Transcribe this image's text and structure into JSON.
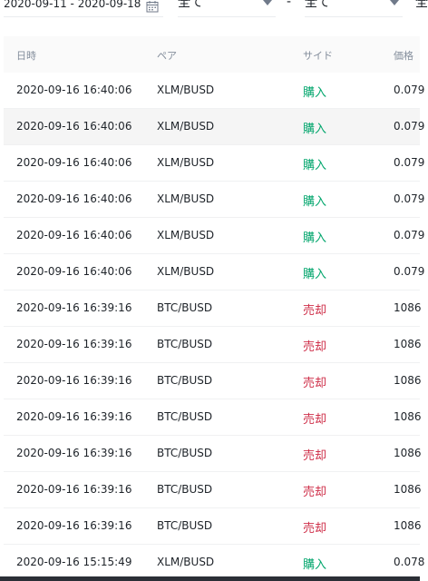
{
  "filters": {
    "date_range": "2020-09-11 - 2020-09-18",
    "calendar_icon": "calendar-icon",
    "select1_value": "全て",
    "select2_value": "全て",
    "separator": "-",
    "select3_partial": "全"
  },
  "table": {
    "headers": {
      "time": "日時",
      "pair": "ペア",
      "side": "サイド",
      "price": "価格"
    },
    "rows": [
      {
        "time": "2020-09-16 16:40:06",
        "pair": "XLM/BUSD",
        "side": "購入",
        "side_type": "buy",
        "price": "0.079"
      },
      {
        "time": "2020-09-16 16:40:06",
        "pair": "XLM/BUSD",
        "side": "購入",
        "side_type": "buy",
        "price": "0.079"
      },
      {
        "time": "2020-09-16 16:40:06",
        "pair": "XLM/BUSD",
        "side": "購入",
        "side_type": "buy",
        "price": "0.079"
      },
      {
        "time": "2020-09-16 16:40:06",
        "pair": "XLM/BUSD",
        "side": "購入",
        "side_type": "buy",
        "price": "0.079"
      },
      {
        "time": "2020-09-16 16:40:06",
        "pair": "XLM/BUSD",
        "side": "購入",
        "side_type": "buy",
        "price": "0.079"
      },
      {
        "time": "2020-09-16 16:40:06",
        "pair": "XLM/BUSD",
        "side": "購入",
        "side_type": "buy",
        "price": "0.079"
      },
      {
        "time": "2020-09-16 16:39:16",
        "pair": "BTC/BUSD",
        "side": "売却",
        "side_type": "sell",
        "price": "1086"
      },
      {
        "time": "2020-09-16 16:39:16",
        "pair": "BTC/BUSD",
        "side": "売却",
        "side_type": "sell",
        "price": "1086"
      },
      {
        "time": "2020-09-16 16:39:16",
        "pair": "BTC/BUSD",
        "side": "売却",
        "side_type": "sell",
        "price": "1086"
      },
      {
        "time": "2020-09-16 16:39:16",
        "pair": "BTC/BUSD",
        "side": "売却",
        "side_type": "sell",
        "price": "1086"
      },
      {
        "time": "2020-09-16 16:39:16",
        "pair": "BTC/BUSD",
        "side": "売却",
        "side_type": "sell",
        "price": "1086"
      },
      {
        "time": "2020-09-16 16:39:16",
        "pair": "BTC/BUSD",
        "side": "売却",
        "side_type": "sell",
        "price": "1086"
      },
      {
        "time": "2020-09-16 16:39:16",
        "pair": "BTC/BUSD",
        "side": "売却",
        "side_type": "sell",
        "price": "1086"
      },
      {
        "time": "2020-09-16 15:15:49",
        "pair": "XLM/BUSD",
        "side": "購入",
        "side_type": "buy",
        "price": "0.078"
      }
    ]
  },
  "colors": {
    "buy": "#03a66d",
    "sell": "#cf304a",
    "header_text": "#848e9c"
  }
}
